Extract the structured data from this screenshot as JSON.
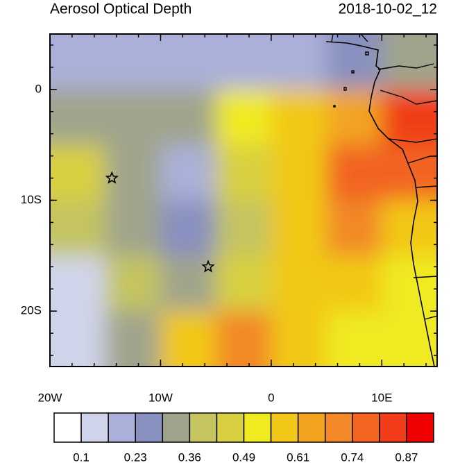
{
  "chart_data": {
    "type": "contour-map",
    "title": "Aerosol Optical Depth",
    "subtitle": "2018-10-02_12",
    "xlim": [
      -20,
      15
    ],
    "ylim": [
      -25,
      5
    ],
    "xticks": [
      {
        "value": -20,
        "label": "20W"
      },
      {
        "value": -10,
        "label": "10W"
      },
      0,
      {
        "value": 10,
        "label": "10E"
      }
    ],
    "yticks": [
      0,
      {
        "value": -10,
        "label": "10S"
      },
      {
        "value": -20,
        "label": "20S"
      }
    ],
    "field": {
      "lon": [
        -17.5,
        -12.5,
        -7.5,
        -2.5,
        2.5,
        7.5,
        12.5
      ],
      "lat": [
        2.5,
        -2.5,
        -7.5,
        -12.5,
        -17.5,
        -22.5
      ],
      "values": [
        [
          0.2,
          0.2,
          0.18,
          0.2,
          0.22,
          0.25,
          0.3
        ],
        [
          0.3,
          0.3,
          0.35,
          0.5,
          0.55,
          0.65,
          0.85
        ],
        [
          0.45,
          0.35,
          0.2,
          0.45,
          0.6,
          0.75,
          0.8
        ],
        [
          0.4,
          0.35,
          0.25,
          0.4,
          0.6,
          0.7,
          0.55
        ],
        [
          0.15,
          0.4,
          0.3,
          0.45,
          0.6,
          0.55,
          0.5
        ],
        [
          0.1,
          0.3,
          0.6,
          0.7,
          0.55,
          0.5,
          0.5
        ]
      ]
    },
    "markers": [
      {
        "lon": -14.4,
        "lat": -8
      },
      {
        "lon": -5.7,
        "lat": -16
      }
    ],
    "colorbar": {
      "ticks": [
        0.1,
        0.23,
        0.36,
        0.49,
        0.61,
        0.74,
        0.87
      ],
      "colors": [
        "#ffffff",
        "#d0d4ea",
        "#aab0d8",
        "#8890c0",
        "#a0a48c",
        "#c4c460",
        "#d8d040",
        "#f0ea20",
        "#f2c818",
        "#f2a420",
        "#f28828",
        "#f26420",
        "#f03c18",
        "#f00000"
      ]
    }
  }
}
